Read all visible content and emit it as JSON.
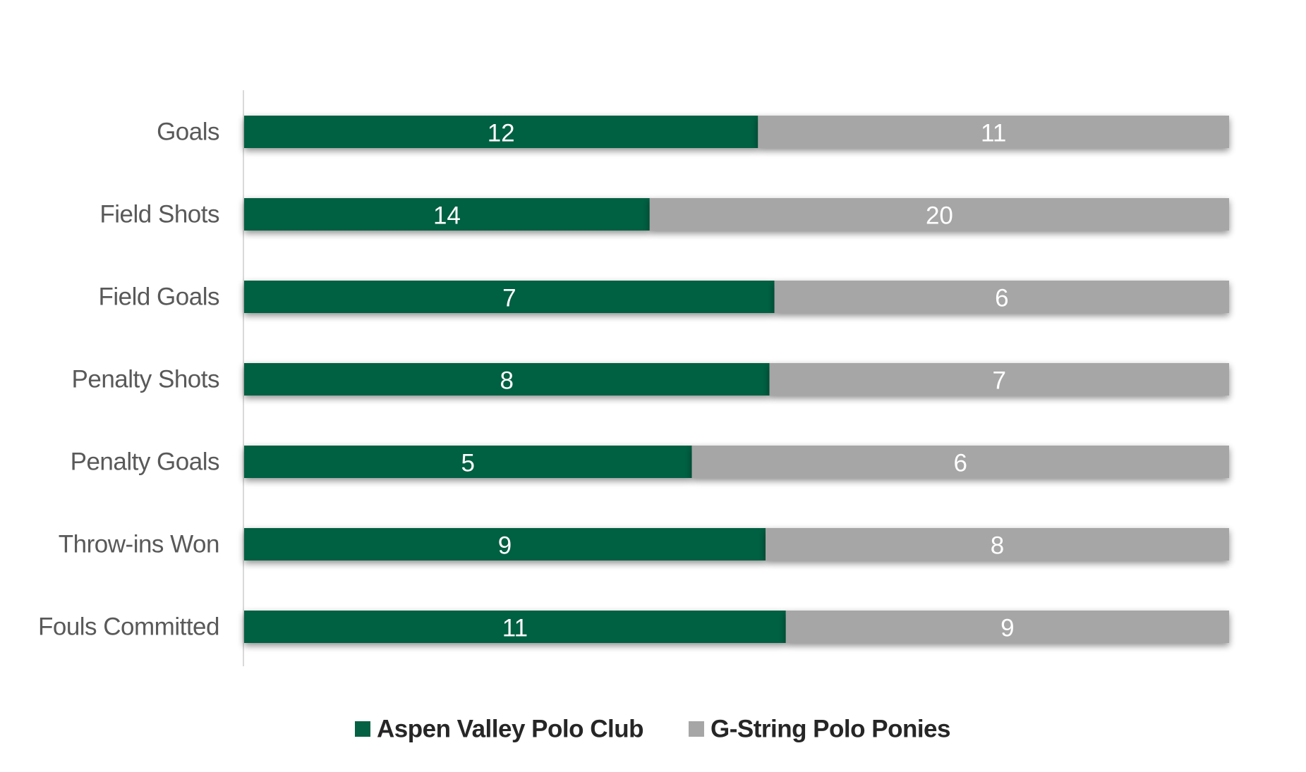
{
  "chart_data": {
    "type": "bar",
    "orientation": "horizontal",
    "stacking": "percent",
    "categories": [
      "Goals",
      "Field Shots",
      "Field Goals",
      "Penalty Shots",
      "Penalty Goals",
      "Throw-ins Won",
      "Fouls Committed"
    ],
    "series": [
      {
        "name": "Aspen Valley Polo Club",
        "color": "#056143",
        "values": [
          12,
          14,
          7,
          8,
          5,
          9,
          11
        ]
      },
      {
        "name": "G-String Polo Ponies",
        "color": "#a6a6a6",
        "values": [
          11,
          20,
          6,
          7,
          6,
          8,
          9
        ]
      }
    ],
    "xlim": [
      0,
      1
    ],
    "data_labels": true,
    "grid": false,
    "legend": "bottom-center"
  }
}
